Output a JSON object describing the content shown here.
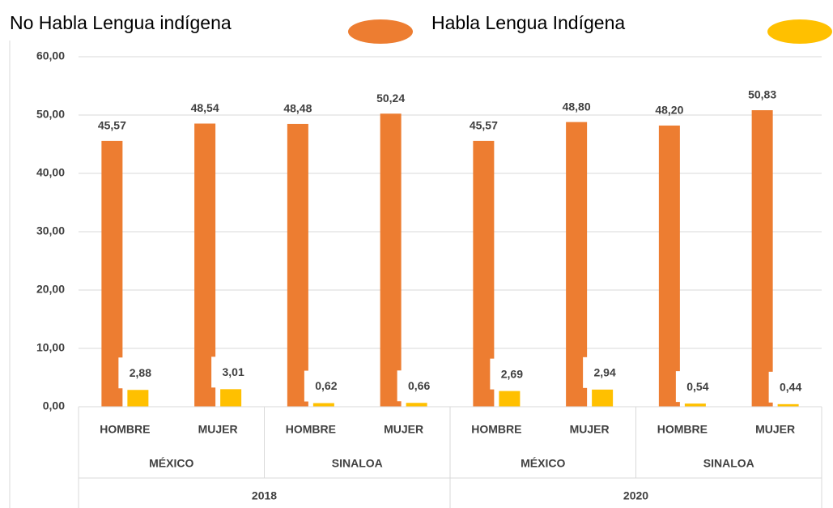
{
  "chart_data": {
    "type": "bar",
    "categories": [
      "HOMBRE",
      "MUJER",
      "HOMBRE",
      "MUJER",
      "HOMBRE",
      "MUJER",
      "HOMBRE",
      "MUJER"
    ],
    "category_levels": [
      [
        "MÉXICO",
        "SINALOA",
        "MÉXICO",
        "SINALOA"
      ],
      [
        "2018",
        "2020"
      ]
    ],
    "series": [
      {
        "name": "No Habla Lengua indígena",
        "color": "#ED7D31",
        "values": [
          45.57,
          48.54,
          48.48,
          50.24,
          45.57,
          48.8,
          48.2,
          50.83
        ],
        "value_labels": [
          "45,57",
          "48,54",
          "48,48",
          "50,24",
          "45,57",
          "48,80",
          "48,20",
          "50,83"
        ]
      },
      {
        "name": "Habla Lengua Indígena",
        "color": "#FFC000",
        "values": [
          2.88,
          3.01,
          0.62,
          0.66,
          2.69,
          2.94,
          0.54,
          0.44
        ],
        "value_labels": [
          "2,88",
          "3,01",
          "0,62",
          "0,66",
          "2,69",
          "2,94",
          "0,54",
          "0,44"
        ]
      }
    ],
    "ylim": [
      0,
      60
    ],
    "yticks": [
      {
        "value": 0,
        "label": "0,00"
      },
      {
        "value": 10,
        "label": "10,00"
      },
      {
        "value": 20,
        "label": "20,00"
      },
      {
        "value": 30,
        "label": "30,00"
      },
      {
        "value": 40,
        "label": "40,00"
      },
      {
        "value": 50,
        "label": "50,00"
      },
      {
        "value": 60,
        "label": "60,00"
      }
    ],
    "grid": true,
    "legend": "top"
  }
}
